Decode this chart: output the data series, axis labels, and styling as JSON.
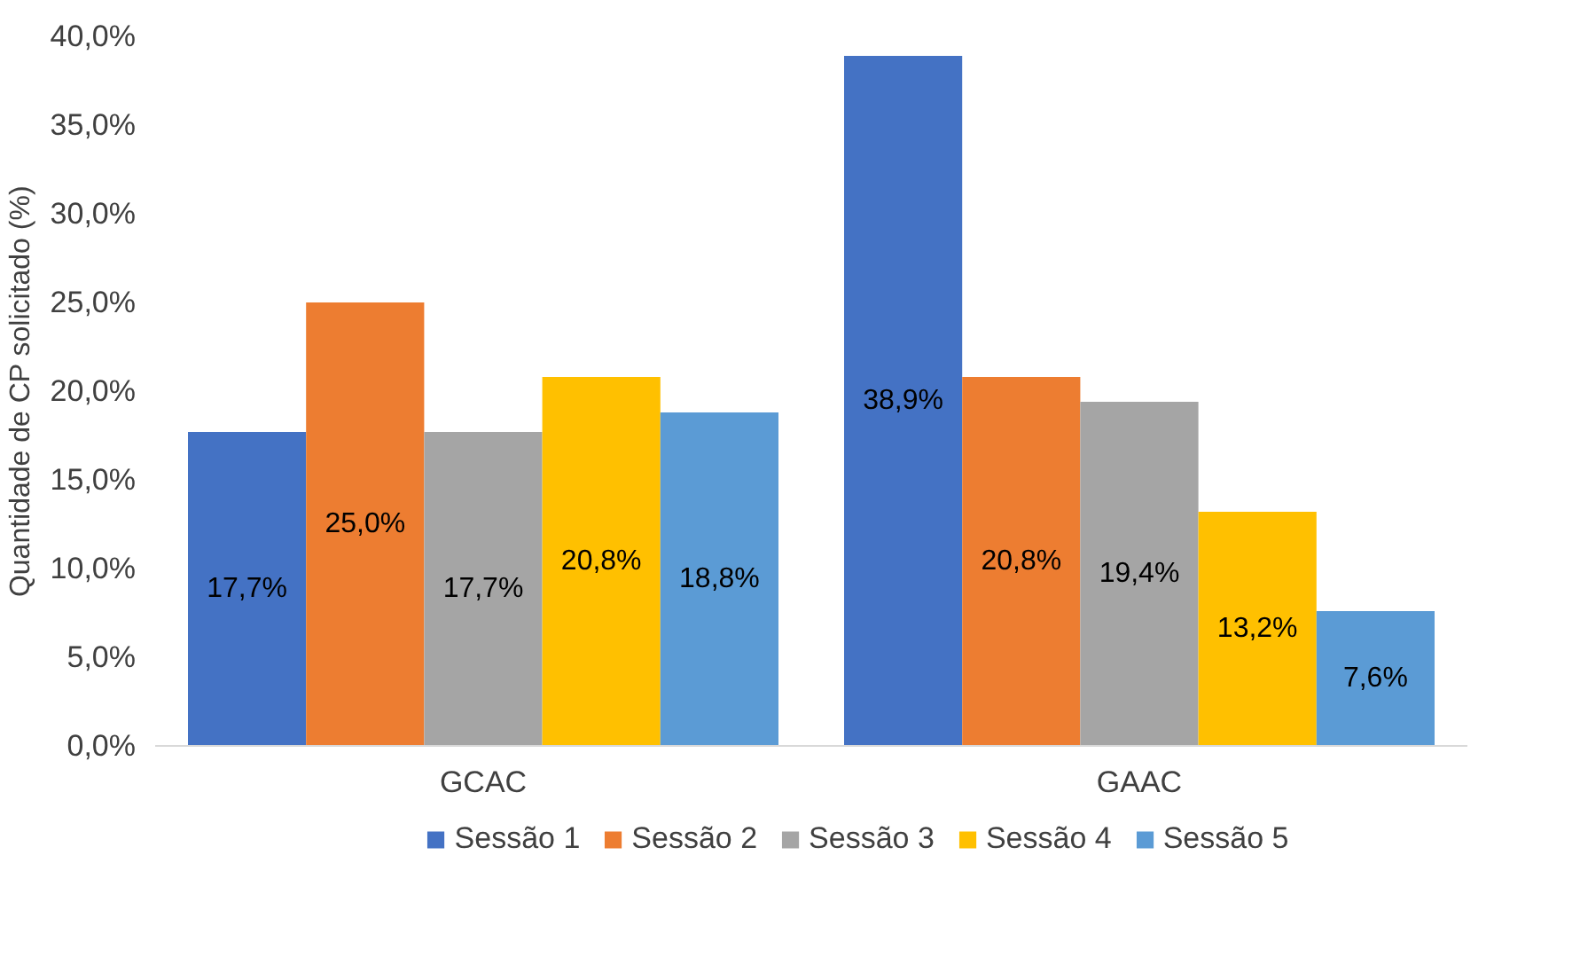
{
  "chart_data": {
    "type": "bar",
    "ylabel": "Quantidade de CP solicitado (%)",
    "categories": [
      "GCAC",
      "GAAC"
    ],
    "series": [
      {
        "name": "Sessão 1",
        "color": "#4472c4",
        "values": [
          17.7,
          38.9
        ],
        "value_labels": [
          "17,7%",
          "38,9%"
        ]
      },
      {
        "name": "Sessão 2",
        "color": "#ed7d31",
        "values": [
          25.0,
          20.8
        ],
        "value_labels": [
          "25,0%",
          "20,8%"
        ]
      },
      {
        "name": "Sessão 3",
        "color": "#a5a5a5",
        "values": [
          17.7,
          19.4
        ],
        "value_labels": [
          "17,7%",
          "19,4%"
        ]
      },
      {
        "name": "Sessão 4",
        "color": "#ffc000",
        "values": [
          20.8,
          13.2
        ],
        "value_labels": [
          "20,8%",
          "13,2%"
        ]
      },
      {
        "name": "Sessão 5",
        "color": "#5b9bd5",
        "values": [
          18.8,
          7.6
        ],
        "value_labels": [
          "18,8%",
          "7,6%"
        ]
      }
    ],
    "ylim": [
      0,
      40
    ],
    "yticks": [
      {
        "value": 0,
        "label": "0,0%"
      },
      {
        "value": 5,
        "label": "5,0%"
      },
      {
        "value": 10,
        "label": "10,0%"
      },
      {
        "value": 15,
        "label": "15,0%"
      },
      {
        "value": 20,
        "label": "20,0%"
      },
      {
        "value": 25,
        "label": "25,0%"
      },
      {
        "value": 30,
        "label": "30,0%"
      },
      {
        "value": 35,
        "label": "35,0%"
      },
      {
        "value": 40,
        "label": "40,0%"
      }
    ],
    "grid": false,
    "legend": "bottom"
  }
}
